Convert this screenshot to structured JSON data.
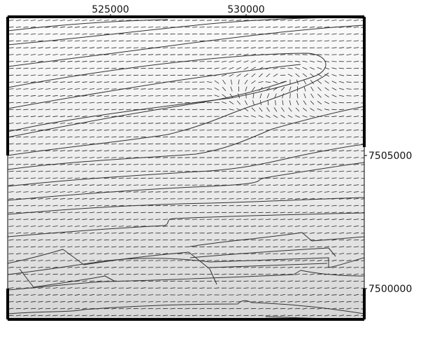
{
  "map": {
    "x_ticks": [
      "525000",
      "530000"
    ],
    "y_ticks": [
      "7505000",
      "7500000"
    ],
    "colors": {
      "background": "#ffffff",
      "field_top": "#fafafa",
      "field_bottom": "#d6d6d6",
      "vector": "#2b2b2b",
      "contour": "#333333",
      "frame": "#000000"
    }
  }
}
